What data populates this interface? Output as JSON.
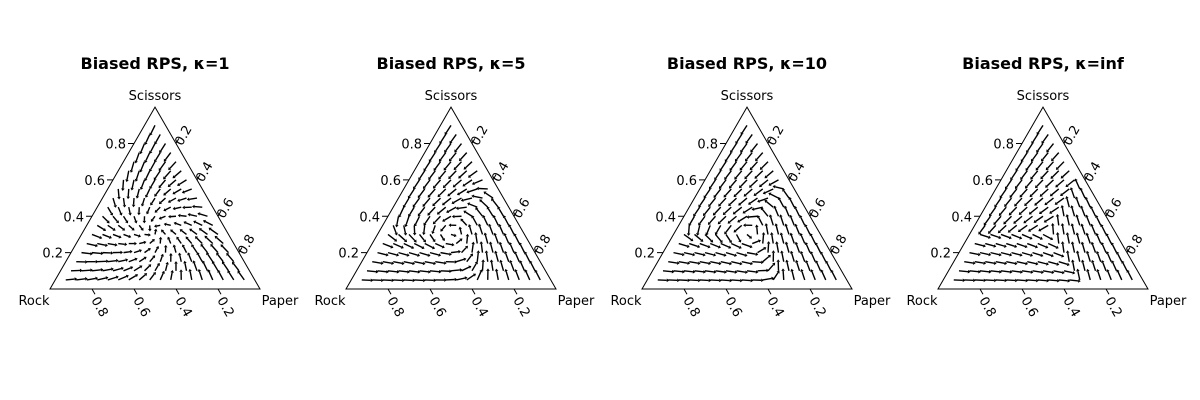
{
  "chart_data": [
    {
      "type": "ternary-quiver",
      "title": "Biased RPS, κ=1",
      "vertices": {
        "bottom_left": "Rock",
        "bottom_right": "Paper",
        "top": "Scissors"
      },
      "kappa": 1,
      "axis_ticks": {
        "left": [
          "0.2",
          "0.4",
          "0.6",
          "0.8"
        ],
        "right": [
          "0.2",
          "0.4",
          "0.6",
          "0.8"
        ],
        "bottom": [
          "0.8",
          "0.6",
          "0.4",
          "0.2"
        ]
      },
      "tick_values": [
        0.2,
        0.4,
        0.6,
        0.8
      ],
      "grid": false
    },
    {
      "type": "ternary-quiver",
      "title": "Biased RPS, κ=5",
      "vertices": {
        "bottom_left": "Rock",
        "bottom_right": "Paper",
        "top": "Scissors"
      },
      "kappa": 5,
      "axis_ticks": {
        "left": [
          "0.2",
          "0.4",
          "0.6",
          "0.8"
        ],
        "right": [
          "0.2",
          "0.4",
          "0.6",
          "0.8"
        ],
        "bottom": [
          "0.8",
          "0.6",
          "0.4",
          "0.2"
        ]
      },
      "tick_values": [
        0.2,
        0.4,
        0.6,
        0.8
      ],
      "grid": false
    },
    {
      "type": "ternary-quiver",
      "title": "Biased RPS, κ=10",
      "vertices": {
        "bottom_left": "Rock",
        "bottom_right": "Paper",
        "top": "Scissors"
      },
      "kappa": 10,
      "axis_ticks": {
        "left": [
          "0.2",
          "0.4",
          "0.6",
          "0.8"
        ],
        "right": [
          "0.2",
          "0.4",
          "0.6",
          "0.8"
        ],
        "bottom": [
          "0.8",
          "0.6",
          "0.4",
          "0.2"
        ]
      },
      "tick_values": [
        0.2,
        0.4,
        0.6,
        0.8
      ],
      "grid": false
    },
    {
      "type": "ternary-quiver",
      "title": "Biased RPS, κ=inf",
      "vertices": {
        "bottom_left": "Rock",
        "bottom_right": "Paper",
        "top": "Scissors"
      },
      "kappa": "inf",
      "axis_ticks": {
        "left": [
          "0.2",
          "0.4",
          "0.6",
          "0.8"
        ],
        "right": [
          "0.2",
          "0.4",
          "0.6",
          "0.8"
        ],
        "bottom": [
          "0.8",
          "0.6",
          "0.4",
          "0.2"
        ]
      },
      "tick_values": [
        0.2,
        0.4,
        0.6,
        0.8
      ],
      "grid": false
    }
  ]
}
